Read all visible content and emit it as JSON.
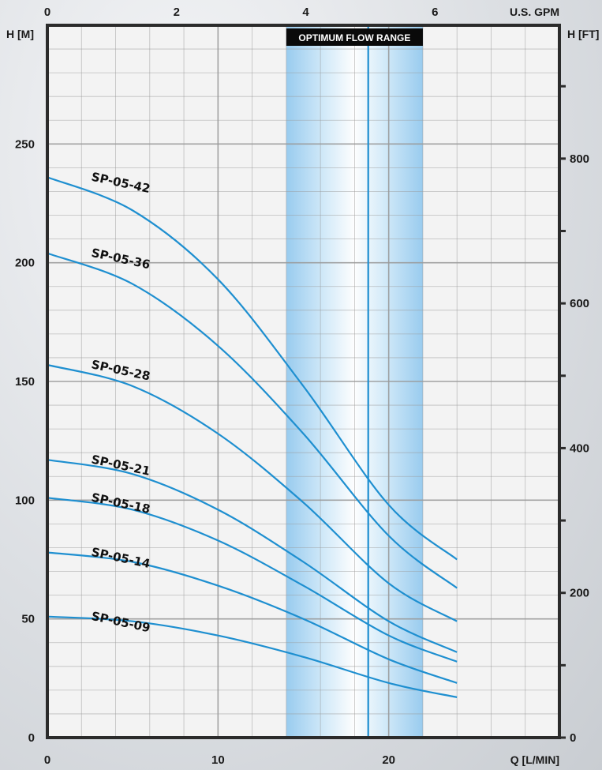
{
  "chart_data": {
    "type": "line",
    "title": "",
    "xlabel": "Q [L/MIN]",
    "ylabel": "H [M]",
    "x2label": "U.S. GPM",
    "y2label": "H [FT]",
    "xlim": [
      0,
      30
    ],
    "ylim": [
      0,
      300
    ],
    "x_ticks": [
      0,
      10,
      20
    ],
    "y_ticks": [
      0,
      50,
      100,
      150,
      200,
      250
    ],
    "x2_ticks": [
      0,
      2,
      4,
      6
    ],
    "y2_ticks": [
      0,
      200,
      400,
      600,
      800
    ],
    "grid": true,
    "optimum_band": {
      "label": "OPTIMUM FLOW RANGE",
      "x_range": [
        14,
        22
      ],
      "optimum_x": 18.8
    },
    "series": [
      {
        "name": "SP-05-42",
        "x": [
          0,
          5,
          10,
          15,
          20,
          24
        ],
        "y": [
          236,
          222,
          193,
          148,
          98,
          75
        ]
      },
      {
        "name": "SP-05-36",
        "x": [
          0,
          5,
          10,
          15,
          20,
          24
        ],
        "y": [
          204,
          191,
          165,
          128,
          85,
          63
        ]
      },
      {
        "name": "SP-05-28",
        "x": [
          0,
          5,
          10,
          15,
          20,
          24
        ],
        "y": [
          157,
          148,
          128,
          99,
          65,
          49
        ]
      },
      {
        "name": "SP-05-21",
        "x": [
          0,
          5,
          10,
          15,
          20,
          24
        ],
        "y": [
          117,
          111,
          96,
          74,
          49,
          36
        ]
      },
      {
        "name": "SP-05-18",
        "x": [
          0,
          5,
          10,
          15,
          20,
          24
        ],
        "y": [
          101,
          96,
          83,
          64,
          43,
          32
        ]
      },
      {
        "name": "SP-05-14",
        "x": [
          0,
          5,
          10,
          15,
          20,
          24
        ],
        "y": [
          78,
          74,
          64,
          50,
          33,
          23
        ]
      },
      {
        "name": "SP-05-09",
        "x": [
          0,
          5,
          10,
          15,
          20,
          24
        ],
        "y": [
          51,
          49,
          43,
          34,
          23,
          17
        ]
      }
    ],
    "colors": {
      "curve": "#1e8fd0",
      "band": "#9fd0f0",
      "band_title_bg": "#0a0a0a",
      "frame": "#2b2b2b",
      "grid": "#9a9a9a"
    }
  }
}
